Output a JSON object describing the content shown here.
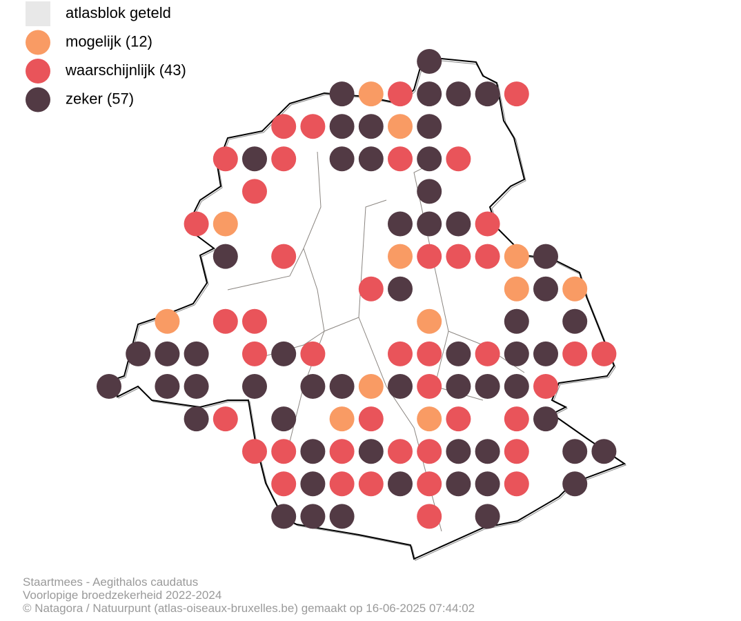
{
  "legend": [
    {
      "label": "atlasblok geteld",
      "color": "#e8e8e8"
    },
    {
      "label": "mogelijk (12)",
      "color": "#f99b64"
    },
    {
      "label": "waarschijnlijk (43)",
      "color": "#e9545a"
    },
    {
      "label": "zeker (57)",
      "color": "#523a44"
    }
  ],
  "footer": [
    "Staartmees - Aegithalos caudatus",
    "Voorlopige broedzekerheid 2022-2024",
    "© Natagora / Natuurpunt (atlas-oiseaux-bruxelles.be) gemaakt op 16-06-2025 07:44:02"
  ]
}
